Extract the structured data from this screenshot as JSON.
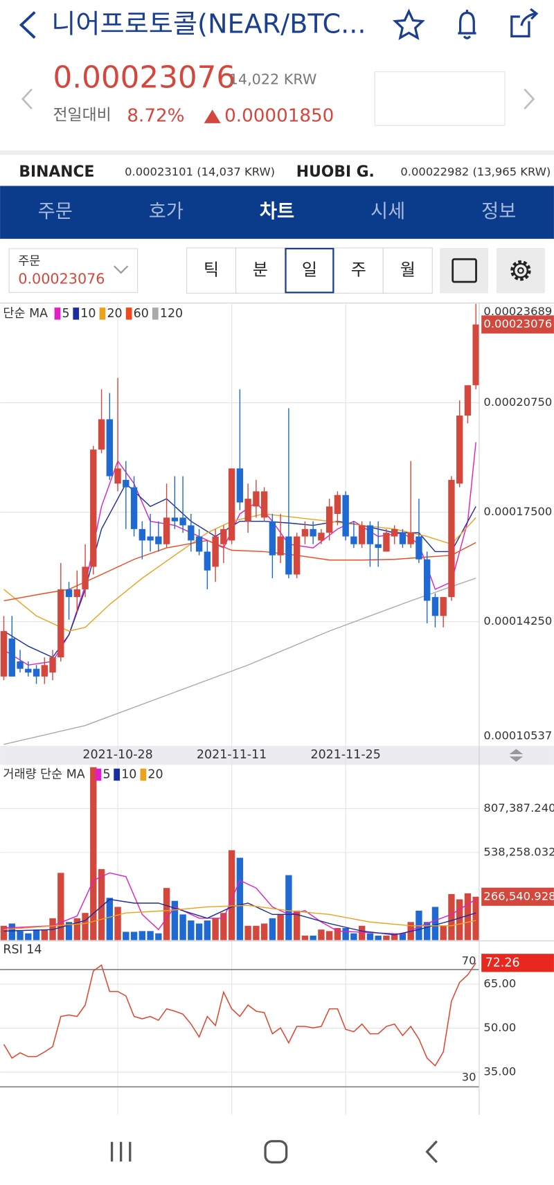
{
  "header": {
    "title": "니어프로토콜(NEAR/BTC...",
    "price": "0.00023076",
    "krw": "14,022 KRW",
    "change_label": "전일대비",
    "change_pct": "8.72%",
    "change": "0.00001850"
  },
  "exchanges": [
    {
      "name": "BINANCE",
      "quote": "0.00023101 (14,037 KRW)"
    },
    {
      "name": "HUOBI G.",
      "quote": "0.00022982 (13,965 KRW)"
    }
  ],
  "tabs": [
    "주문",
    "호가",
    "차트",
    "시세",
    "정보"
  ],
  "active_tab": 2,
  "order": {
    "label": "주문",
    "price": "0.00023076"
  },
  "intervals": [
    "틱",
    "분",
    "일",
    "주",
    "월"
  ],
  "active_interval": 2,
  "chart_data": [
    {
      "type": "candlestick",
      "legend_title": "단순 MA",
      "up_color": "#d4473c",
      "down_color": "#1f6ad2",
      "categories": [
        null,
        null,
        null,
        null,
        null,
        null,
        null,
        null,
        null,
        null,
        null,
        null,
        null,
        null,
        "2021-10-28",
        null,
        null,
        null,
        null,
        null,
        null,
        null,
        null,
        null,
        null,
        null,
        null,
        null,
        "2021-11-11",
        null,
        null,
        null,
        null,
        null,
        null,
        null,
        null,
        null,
        null,
        null,
        null,
        null,
        "2021-11-25",
        null,
        null,
        null,
        null,
        null,
        null,
        null,
        null,
        null,
        null,
        null,
        null,
        null,
        null,
        null,
        null
      ],
      "open": [
        0.0001262,
        0.0001375,
        0.0001307,
        0.0001285,
        0.0001285,
        0.0001262,
        0.0001274,
        0.0001319,
        0.0001521,
        0.0001498,
        0.0001521,
        0.0001588,
        0.0001936,
        0.0002026,
        0.0001835,
        0.0001846,
        0.0001824,
        0.00017,
        0.0001678,
        0.0001678,
        0.0001655,
        0.0001734,
        0.0001734,
        0.0001711,
        0.0001678,
        0.0001633,
        0.0001588,
        0.0001655,
        0.0001666,
        0.000188,
        0.0001723,
        0.0001767,
        0.0001734,
        0.0001723,
        0.0001622,
        0.0001678,
        0.0001565,
        0.0001678,
        0.00017,
        0.0001666,
        0.0001689,
        0.0001745,
        0.0001801,
        0.0001678,
        0.0001655,
        0.0001711,
        0.0001655,
        0.0001633,
        0.0001678,
        0.0001689,
        0.0001655,
        0.0001678,
        0.000161,
        0.0001498,
        0.0001442,
        0.0001498,
        0.0001835,
        0.0002037,
        0.0002127
      ],
      "high": [
        0.0001442,
        0.0001442,
        0.0001341,
        0.0001307,
        0.0001296,
        0.0001319,
        0.0001341,
        0.0001599,
        0.0001543,
        0.0001577,
        0.0001655,
        0.0001947,
        0.0002115,
        0.0002104,
        0.0002149,
        0.0001902,
        0.0001857,
        0.0001723,
        0.0001745,
        0.0001723,
        0.0001835,
        0.0001857,
        0.0001857,
        0.0001745,
        0.00017,
        0.0001666,
        0.00017,
        0.0001711,
        0.000188,
        0.0002115,
        0.0001835,
        0.0001846,
        0.0001824,
        0.0001745,
        0.0001745,
        0.0002059,
        0.0001689,
        0.0001723,
        0.0001723,
        0.00017,
        0.000179,
        0.0001812,
        0.0001812,
        0.0001723,
        0.0001723,
        0.0001723,
        0.0001723,
        0.00017,
        0.0001711,
        0.00017,
        0.0001902,
        0.000179,
        0.0001633,
        0.0001509,
        0.0001498,
        0.0001857,
        0.0002082,
        0.0002127,
        0.00023689
      ],
      "low": [
        0.0001251,
        0.0001262,
        0.0001274,
        0.0001262,
        0.000124,
        0.000124,
        0.0001251,
        0.0001307,
        0.0001431,
        0.0001453,
        0.0001498,
        0.0001565,
        0.0001925,
        0.0001846,
        0.0001812,
        0.00017,
        0.0001678,
        0.000161,
        0.0001633,
        0.0001633,
        0.0001644,
        0.00017,
        0.0001689,
        0.0001633,
        0.0001622,
        0.0001521,
        0.0001543,
        0.0001599,
        0.0001655,
        0.0001756,
        0.0001689,
        0.0001734,
        0.0001723,
        0.0001554,
        0.0001599,
        0.0001554,
        0.0001554,
        0.0001655,
        0.0001655,
        0.0001655,
        0.0001666,
        0.0001711,
        0.0001666,
        0.0001644,
        0.0001644,
        0.0001588,
        0.0001588,
        0.0001633,
        0.0001655,
        0.0001644,
        0.0001644,
        0.0001599,
        0.000142,
        0.0001408,
        0.0001408,
        0.0001487,
        0.0001824,
        0.0002014,
        0.0002115
      ],
      "close": [
        0.0001397,
        0.0001262,
        0.0001285,
        0.0001274,
        0.0001262,
        0.0001296,
        0.0001319,
        0.0001521,
        0.0001498,
        0.0001521,
        0.0001588,
        0.0001936,
        0.0002026,
        0.0001857,
        0.000188,
        0.0001824,
        0.00017,
        0.0001666,
        0.0001666,
        0.0001655,
        0.0001734,
        0.0001723,
        0.0001711,
        0.0001666,
        0.0001633,
        0.0001577,
        0.0001678,
        0.00017,
        0.000188,
        0.0001779,
        0.000179,
        0.0001812,
        0.0001812,
        0.0001622,
        0.0001678,
        0.0001565,
        0.0001678,
        0.00017,
        0.0001678,
        0.0001689,
        0.0001767,
        0.0001801,
        0.0001678,
        0.0001655,
        0.0001711,
        0.0001655,
        0.0001644,
        0.0001689,
        0.00017,
        0.0001655,
        0.0001689,
        0.000161,
        0.0001487,
        0.0001442,
        0.0001498,
        0.0001846,
        0.0002037,
        0.0002127,
        0.00023076
      ],
      "series": [
        {
          "name": "5",
          "color": "#e21fc4",
          "x": [
            0,
            3,
            6,
            8,
            10,
            12,
            14,
            16,
            18,
            21,
            24,
            27,
            29,
            31,
            33,
            35,
            38,
            41,
            43,
            46,
            49,
            51,
            53,
            55,
            57,
            58
          ],
          "values": [
            0.0001341,
            0.0001296,
            0.0001307,
            0.0001386,
            0.0001532,
            0.0001767,
            0.0001902,
            0.0001835,
            0.0001723,
            0.0001711,
            0.0001678,
            0.0001644,
            0.0001745,
            0.0001779,
            0.0001723,
            0.0001655,
            0.0001644,
            0.00017,
            0.0001723,
            0.0001678,
            0.0001689,
            0.0001655,
            0.0001521,
            0.0001543,
            0.0001723,
            0.0001958
          ]
        },
        {
          "name": "10",
          "color": "#1a2ea0",
          "x": [
            0,
            3,
            6,
            8,
            10,
            12,
            15,
            18,
            20,
            23,
            26,
            29,
            32,
            35,
            38,
            41,
            44,
            48,
            51,
            53,
            55,
            58
          ],
          "values": [
            0.0001397,
            0.0001352,
            0.0001319,
            0.0001386,
            0.0001521,
            0.00017,
            0.0001835,
            0.0001767,
            0.000179,
            0.0001723,
            0.0001678,
            0.0001723,
            0.0001723,
            0.0001718,
            0.0001711,
            0.0001723,
            0.0001711,
            0.0001689,
            0.0001689,
            0.0001633,
            0.0001633,
            0.0001767
          ]
        },
        {
          "name": "20",
          "color": "#eda21c",
          "x": [
            0,
            4,
            8,
            10,
            13,
            17,
            21,
            25,
            28,
            32,
            36,
            40,
            44,
            48,
            52,
            55,
            58
          ],
          "values": [
            0.0001521,
            0.0001442,
            0.0001397,
            0.0001408,
            0.0001476,
            0.0001554,
            0.0001622,
            0.0001689,
            0.0001723,
            0.0001745,
            0.0001734,
            0.0001723,
            0.0001711,
            0.00017,
            0.0001678,
            0.0001655,
            0.0001734
          ]
        },
        {
          "name": "60",
          "color": "#ef4a1e",
          "x": [
            0,
            5,
            8,
            12,
            16,
            20,
            25,
            28,
            32,
            36,
            40,
            44,
            48,
            52,
            55,
            58
          ],
          "values": [
            0.0001487,
            0.0001509,
            0.0001521,
            0.0001565,
            0.000161,
            0.0001644,
            0.0001666,
            0.0001637,
            0.0001633,
            0.0001622,
            0.0001608,
            0.0001608,
            0.000161,
            0.0001617,
            0.0001622,
            0.000166
          ]
        },
        {
          "name": "120",
          "color": "#aaaaaa",
          "x": [
            0,
            10,
            15,
            20,
            30,
            40,
            50,
            58
          ],
          "values": [
            0.00010605,
            0.00011166,
            0.00011615,
            0.00012064,
            0.00012961,
            0.00013971,
            0.00014869,
            0.00015542
          ]
        }
      ],
      "ylim": [
        0.00010537,
        0.00023689
      ],
      "yticks": [
        {
          "value": 0.0002075,
          "label": "0.00020750"
        },
        {
          "value": 0.000175,
          "label": "0.00017500"
        },
        {
          "value": 0.0001425,
          "label": "0.00014250"
        }
      ],
      "grid": true
    },
    {
      "type": "bar",
      "legend_title": "거래량 단순 MA",
      "values": [
        88160,
        102080,
        55680,
        41760,
        64960,
        64960,
        134560,
        412960,
        111360,
        134560,
        167040,
        1062000,
        436160,
        259840,
        204160,
        51040,
        51040,
        55680,
        55680,
        41760,
        320160,
        241280,
        157760,
        120640,
        102080,
        120640,
        134560,
        167040,
        552160,
        505760,
        88160,
        88160,
        102080,
        134560,
        157760,
        399040,
        180960,
        27840,
        27840,
        64960,
        55680,
        74240,
        74240,
        41760,
        88160,
        41760,
        27840,
        27840,
        41760,
        41760,
        111360,
        180960,
        111360,
        204160,
        88160,
        283040,
        250560,
        287680,
        266540.928
      ],
      "value_labels": [
        null,
        null,
        null,
        null,
        null,
        null,
        null,
        null,
        null,
        null,
        null,
        null,
        null,
        null,
        null,
        null,
        null,
        null,
        null,
        null,
        null,
        null,
        null,
        null,
        null,
        null,
        null,
        null,
        null,
        null,
        null,
        null,
        null,
        null,
        null,
        null,
        null,
        null,
        null,
        null,
        null,
        null,
        null,
        null,
        null,
        null,
        null,
        null,
        null,
        null,
        null,
        null,
        null,
        null,
        null,
        null,
        null,
        null,
        "266,540.928"
      ],
      "series": [
        {
          "name": "5",
          "color": "#e21fc4",
          "x": [
            0,
            6,
            9,
            11,
            13,
            15,
            17,
            19,
            21,
            24,
            27,
            29,
            31,
            33,
            35,
            37,
            39,
            41,
            45,
            49,
            52,
            55,
            58
          ],
          "values": [
            74240,
            88160,
            148480,
            366560,
            412960,
            389760,
            157760,
            64960,
            204160,
            134560,
            134560,
            366560,
            320160,
            204160,
            157760,
            180960,
            111360,
            55680,
            46400,
            37120,
            102080,
            157760,
            250560
          ]
        },
        {
          "name": "10",
          "color": "#1a2ea0",
          "x": [
            0,
            6,
            10,
            13,
            16,
            19,
            22,
            25,
            28,
            30,
            33,
            36,
            40,
            44,
            48,
            51,
            55,
            58
          ],
          "values": [
            55680,
            64960,
            120640,
            250560,
            227360,
            227360,
            180960,
            134560,
            204160,
            227360,
            157760,
            157760,
            102080,
            55680,
            32480,
            64960,
            120640,
            167040
          ]
        },
        {
          "name": "20",
          "color": "#eda21c",
          "x": [
            0,
            10,
            15,
            20,
            25,
            30,
            35,
            40,
            45,
            50,
            55,
            58
          ],
          "values": [
            64960,
            102080,
            167040,
            180960,
            204160,
            213440,
            180960,
            157760,
            111360,
            88160,
            88160,
            120640
          ]
        }
      ],
      "ylim": [
        0,
        1062600
      ],
      "yticks": [
        {
          "value": 538258.032,
          "label": "538,258.032"
        },
        {
          "value": 807387.24,
          "label": "807,387.240"
        }
      ],
      "grid": true
    },
    {
      "type": "line",
      "title": "RSI 14",
      "color": "#e0452e",
      "label_color": "#e8281e",
      "values": [
        44.5,
        39.8,
        41.6,
        40.3,
        40.3,
        41.9,
        43.7,
        54.0,
        54.5,
        54.0,
        57.9,
        69.5,
        71.5,
        62.5,
        62.5,
        61.0,
        54.0,
        53.2,
        54.0,
        52.7,
        56.6,
        55.8,
        54.8,
        51.4,
        47.0,
        54.0,
        50.9,
        62.3,
        56.6,
        54.0,
        57.9,
        55.8,
        55.3,
        48.1,
        50.1,
        45.0,
        50.6,
        50.6,
        50.1,
        50.6,
        56.6,
        56.6,
        49.6,
        48.8,
        51.4,
        48.1,
        48.1,
        50.6,
        51.4,
        47.5,
        50.6,
        46.3,
        39.8,
        37.2,
        41.9,
        59.2,
        65.6,
        68.2,
        72.26
      ],
      "levels": [
        70,
        30
      ],
      "ylim": [
        20.5,
        79.5
      ],
      "yticks": [
        {
          "value": 65,
          "label": "65.00"
        },
        {
          "value": 50,
          "label": "50.00"
        },
        {
          "value": 35,
          "label": "35.00"
        }
      ],
      "grid": true
    }
  ]
}
